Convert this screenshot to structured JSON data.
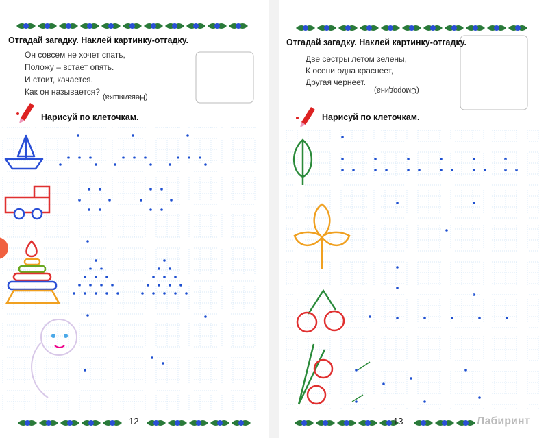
{
  "pages": [
    {
      "title": "Отгадай загадку. Наклей картинку-отгадку.",
      "riddle": [
        "Он совсем не хочет спать,",
        "Положу – встает опять.",
        "И стоит, качается.",
        "Как он называется?"
      ],
      "answer": "(Неваляшка)",
      "task": "Нарисуй по клеточкам.",
      "page_number": "12"
    },
    {
      "title": "Отгадай загадку. Наклей картинку-отгадку.",
      "riddle": [
        "Две сестры летом зелены,",
        "К осени одна краснеет,",
        "Другая чернеет."
      ],
      "answer": "(Смородина)",
      "task": "Нарисуй по клеточкам.",
      "page_number": "13"
    }
  ],
  "watermark": "Лабиринт"
}
